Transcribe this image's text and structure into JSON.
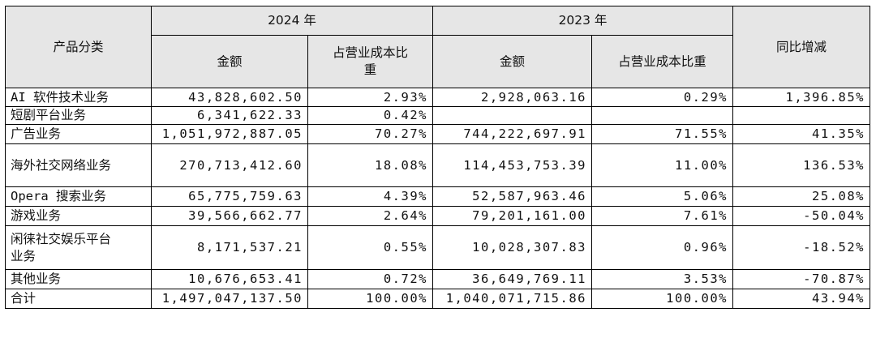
{
  "header": {
    "category": "产品分类",
    "year_2024": "2024 年",
    "year_2023": "2023 年",
    "yoy": "同比增减",
    "amount_2024": "金额",
    "share_2024": "占营业成本比重",
    "amount_2023": "金额",
    "share_2023": "占营业成本比重"
  },
  "rows": [
    {
      "category": "AI 软件技术业务",
      "amount_2024": "43,828,602.50",
      "share_2024": "2.93%",
      "amount_2023": "2,928,063.16",
      "share_2023": "0.29%",
      "yoy": "1,396.85%"
    },
    {
      "category": "短剧平台业务",
      "amount_2024": "6,341,622.33",
      "share_2024": "0.42%",
      "amount_2023": "",
      "share_2023": "",
      "yoy": ""
    },
    {
      "category": "广告业务",
      "amount_2024": "1,051,972,887.05",
      "share_2024": "70.27%",
      "amount_2023": "744,222,697.91",
      "share_2023": "71.55%",
      "yoy": "41.35%"
    },
    {
      "category": "海外社交网络业务",
      "amount_2024": "270,713,412.60",
      "share_2024": "18.08%",
      "amount_2023": "114,453,753.39",
      "share_2023": "11.00%",
      "yoy": "136.53%"
    },
    {
      "category": "Opera 搜索业务",
      "amount_2024": "65,775,759.63",
      "share_2024": "4.39%",
      "amount_2023": "52,587,963.46",
      "share_2023": "5.06%",
      "yoy": "25.08%"
    },
    {
      "category": "游戏业务",
      "amount_2024": "39,566,662.77",
      "share_2024": "2.64%",
      "amount_2023": "79,201,161.00",
      "share_2023": "7.61%",
      "yoy": "-50.04%"
    },
    {
      "category": "闲徕社交娱乐平台业务",
      "amount_2024": "8,171,537.21",
      "share_2024": "0.55%",
      "amount_2023": "10,028,307.83",
      "share_2023": "0.96%",
      "yoy": "-18.52%"
    },
    {
      "category": "其他业务",
      "amount_2024": "10,676,653.41",
      "share_2024": "0.72%",
      "amount_2023": "36,649,769.11",
      "share_2023": "3.53%",
      "yoy": "-70.87%"
    },
    {
      "category": "合计",
      "amount_2024": "1,497,047,137.50",
      "share_2024": "100.00%",
      "amount_2023": "1,040,071,715.86",
      "share_2023": "100.00%",
      "yoy": "43.94%"
    }
  ]
}
